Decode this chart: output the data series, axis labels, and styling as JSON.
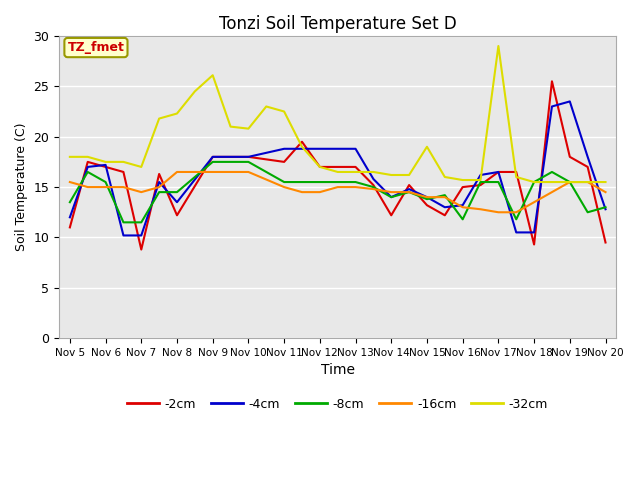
{
  "title": "Tonzi Soil Temperature Set D",
  "xlabel": "Time",
  "ylabel": "Soil Temperature (C)",
  "ylim": [
    0,
    30
  ],
  "yticks": [
    0,
    5,
    10,
    15,
    20,
    25,
    30
  ],
  "x_labels": [
    "Nov 5",
    "Nov 6",
    "Nov 7",
    "Nov 8",
    "Nov 9",
    "Nov 10",
    "Nov 11",
    "Nov 12",
    "Nov 13",
    "Nov 14",
    "Nov 15",
    "Nov 16",
    "Nov 17",
    "Nov 18",
    "Nov 19",
    "Nov 20"
  ],
  "annotation_label": "TZ_fmet",
  "annotation_color": "#cc0000",
  "annotation_bg": "#ffffcc",
  "series": {
    "-2cm": {
      "color": "#dd0000",
      "x": [
        0,
        0.5,
        1.0,
        1.5,
        2.0,
        2.5,
        3.0,
        4.0,
        5.0,
        6.0,
        6.5,
        7.0,
        7.5,
        8.0,
        8.5,
        9.0,
        9.5,
        10.0,
        10.5,
        11.0,
        11.5,
        12.0,
        12.5,
        13.0,
        13.5,
        14.0,
        14.5,
        15.0
      ],
      "y": [
        11.0,
        17.5,
        17.0,
        16.5,
        8.8,
        16.3,
        12.2,
        18.0,
        18.0,
        17.5,
        19.5,
        17.0,
        17.0,
        17.0,
        15.2,
        12.2,
        15.2,
        13.2,
        12.2,
        15.0,
        15.2,
        16.5,
        16.5,
        9.3,
        25.5,
        18.0,
        17.0,
        9.5
      ]
    },
    "-4cm": {
      "color": "#0000cc",
      "x": [
        0,
        0.5,
        1.0,
        1.5,
        2.0,
        2.5,
        3.0,
        4.0,
        5.0,
        6.0,
        6.5,
        7.0,
        7.5,
        8.0,
        8.5,
        9.0,
        9.5,
        10.0,
        10.5,
        11.0,
        11.5,
        12.0,
        12.5,
        13.0,
        13.5,
        14.0,
        14.5,
        15.0
      ],
      "y": [
        12.0,
        17.0,
        17.2,
        10.2,
        10.2,
        15.5,
        13.5,
        18.0,
        18.0,
        18.8,
        18.8,
        18.8,
        18.8,
        18.8,
        15.8,
        14.0,
        14.8,
        14.0,
        13.0,
        13.2,
        16.2,
        16.5,
        10.5,
        10.5,
        23.0,
        23.5,
        18.0,
        12.8
      ]
    },
    "-8cm": {
      "color": "#00aa00",
      "x": [
        0,
        0.5,
        1.0,
        1.5,
        2.0,
        2.5,
        3.0,
        4.0,
        5.0,
        6.0,
        6.5,
        7.0,
        7.5,
        8.0,
        8.5,
        9.0,
        9.5,
        10.0,
        10.5,
        11.0,
        11.5,
        12.0,
        12.5,
        13.0,
        13.5,
        14.0,
        14.5,
        15.0
      ],
      "y": [
        13.5,
        16.5,
        15.5,
        11.5,
        11.5,
        14.5,
        14.5,
        17.5,
        17.5,
        15.5,
        15.5,
        15.5,
        15.5,
        15.5,
        15.0,
        14.0,
        14.5,
        13.8,
        14.2,
        11.8,
        15.5,
        15.5,
        11.8,
        15.5,
        16.5,
        15.5,
        12.5,
        13.0
      ]
    },
    "-16cm": {
      "color": "#ff8800",
      "x": [
        0,
        0.5,
        1.0,
        1.5,
        2.0,
        2.5,
        3.0,
        4.0,
        5.0,
        6.0,
        6.5,
        7.0,
        7.5,
        8.0,
        8.5,
        9.0,
        9.5,
        10.0,
        10.5,
        11.0,
        11.5,
        12.0,
        12.5,
        13.0,
        13.5,
        14.0,
        14.5,
        15.0
      ],
      "y": [
        15.5,
        15.0,
        15.0,
        15.0,
        14.5,
        15.0,
        16.5,
        16.5,
        16.5,
        15.0,
        14.5,
        14.5,
        15.0,
        15.0,
        14.8,
        14.5,
        14.5,
        14.0,
        14.0,
        13.0,
        12.8,
        12.5,
        12.5,
        13.5,
        14.5,
        15.5,
        15.5,
        14.5
      ]
    },
    "-32cm": {
      "color": "#dddd00",
      "x": [
        0,
        0.5,
        1.0,
        1.5,
        2.0,
        2.5,
        3.0,
        3.5,
        4.0,
        4.5,
        5.0,
        5.5,
        6.0,
        6.5,
        7.0,
        7.5,
        8.0,
        8.5,
        9.0,
        9.5,
        10.0,
        10.5,
        11.0,
        11.5,
        12.0,
        12.5,
        13.0,
        13.5,
        14.0,
        14.5,
        15.0
      ],
      "y": [
        18.0,
        18.0,
        17.5,
        17.5,
        17.0,
        21.8,
        22.3,
        24.5,
        26.1,
        21.0,
        20.8,
        23.0,
        22.5,
        19.0,
        17.0,
        16.5,
        16.5,
        16.5,
        16.2,
        16.2,
        19.0,
        16.0,
        15.7,
        15.7,
        29.0,
        16.0,
        15.5,
        15.5,
        15.5,
        15.5,
        15.5
      ]
    }
  },
  "background_color": "#e8e8e8",
  "grid_color": "#ffffff",
  "figsize": [
    6.4,
    4.8
  ],
  "dpi": 100
}
